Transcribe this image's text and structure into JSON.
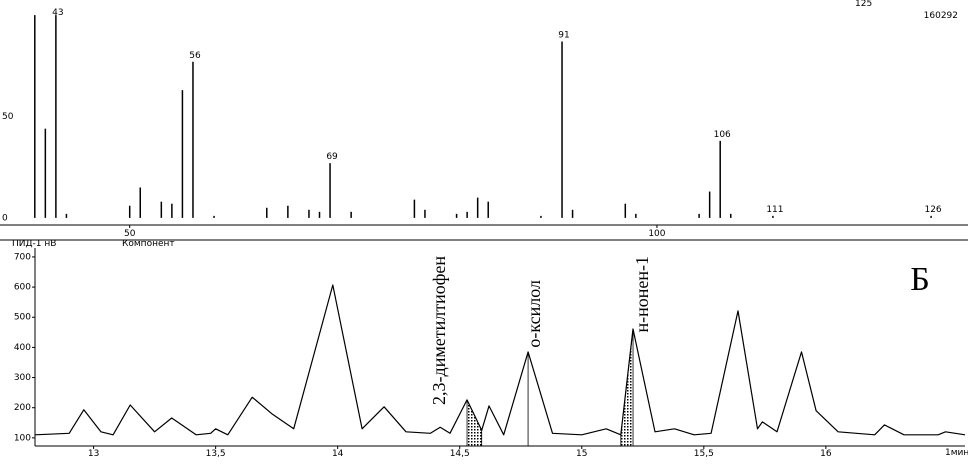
{
  "chart_data": [
    {
      "type": "bar",
      "color": "#000000",
      "x": [
        41,
        42,
        43,
        44,
        50,
        51,
        53,
        54,
        55,
        56,
        58,
        63,
        65,
        67,
        68,
        69,
        71,
        77,
        78,
        81,
        82,
        83,
        84,
        89,
        91,
        92,
        97,
        98,
        104,
        105,
        106,
        107,
        111,
        126
      ],
      "values": [
        100,
        44,
        100,
        2,
        6,
        15,
        8,
        7,
        63,
        77,
        1,
        5,
        6,
        4,
        3,
        27,
        3,
        9,
        4,
        2,
        3,
        10,
        8,
        1,
        87,
        4,
        7,
        2,
        2,
        13,
        38,
        2,
        1,
        1
      ],
      "labels": [
        43,
        56,
        69,
        91,
        106,
        111,
        126
      ],
      "xlim": [
        37.7,
        129.5
      ],
      "xticks": [
        50,
        100
      ],
      "ylim": [
        -3.5,
        105
      ],
      "yticks": [
        0,
        50
      ],
      "annotations": [
        "125",
        "160292"
      ]
    },
    {
      "type": "line",
      "color": "#000000",
      "ylabel": "ПИД-1 нВ",
      "subtitle": "Компонент",
      "xlabel": "1мин",
      "x": [
        12.76,
        12.9,
        12.96,
        13.03,
        13.08,
        13.15,
        13.25,
        13.32,
        13.42,
        13.48,
        13.5,
        13.55,
        13.65,
        13.73,
        13.82,
        13.98,
        14.1,
        14.19,
        14.28,
        14.38,
        14.42,
        14.46,
        14.53,
        14.59,
        14.62,
        14.68,
        14.78,
        14.88,
        15.0,
        15.1,
        15.16,
        15.21,
        15.3,
        15.38,
        15.46,
        15.53,
        15.64,
        15.72,
        15.74,
        15.8,
        15.9,
        15.96,
        16.05,
        16.2,
        16.24,
        16.32,
        16.46,
        16.49,
        16.57
      ],
      "values": [
        110,
        115,
        193,
        120,
        110,
        209,
        120,
        166,
        110,
        115,
        130,
        110,
        235,
        180,
        130,
        607,
        130,
        203,
        120,
        115,
        135,
        115,
        226,
        125,
        206,
        110,
        385,
        115,
        110,
        130,
        110,
        461,
        120,
        130,
        110,
        115,
        521,
        130,
        153,
        120,
        385,
        190,
        120,
        110,
        143,
        110,
        110,
        120,
        110
      ],
      "xlim": [
        12.76,
        16.57
      ],
      "xticks": [
        13,
        {
          "value": 13.5,
          "label": "13,5"
        },
        14,
        {
          "value": 14.5,
          "label": "14,5"
        },
        15,
        {
          "value": 15.5,
          "label": "15,5"
        },
        16
      ],
      "ylim": [
        73,
        723
      ],
      "yticks": [
        100,
        200,
        300,
        400,
        500,
        600,
        700
      ],
      "annotations": [
        {
          "text": "2,3-диметилтиофен",
          "x": 14.53
        },
        {
          "text": "о-ксилол",
          "x": 14.78
        },
        {
          "text": "н-нонен-1",
          "x": 15.21
        }
      ],
      "panel_label": "Б"
    }
  ]
}
